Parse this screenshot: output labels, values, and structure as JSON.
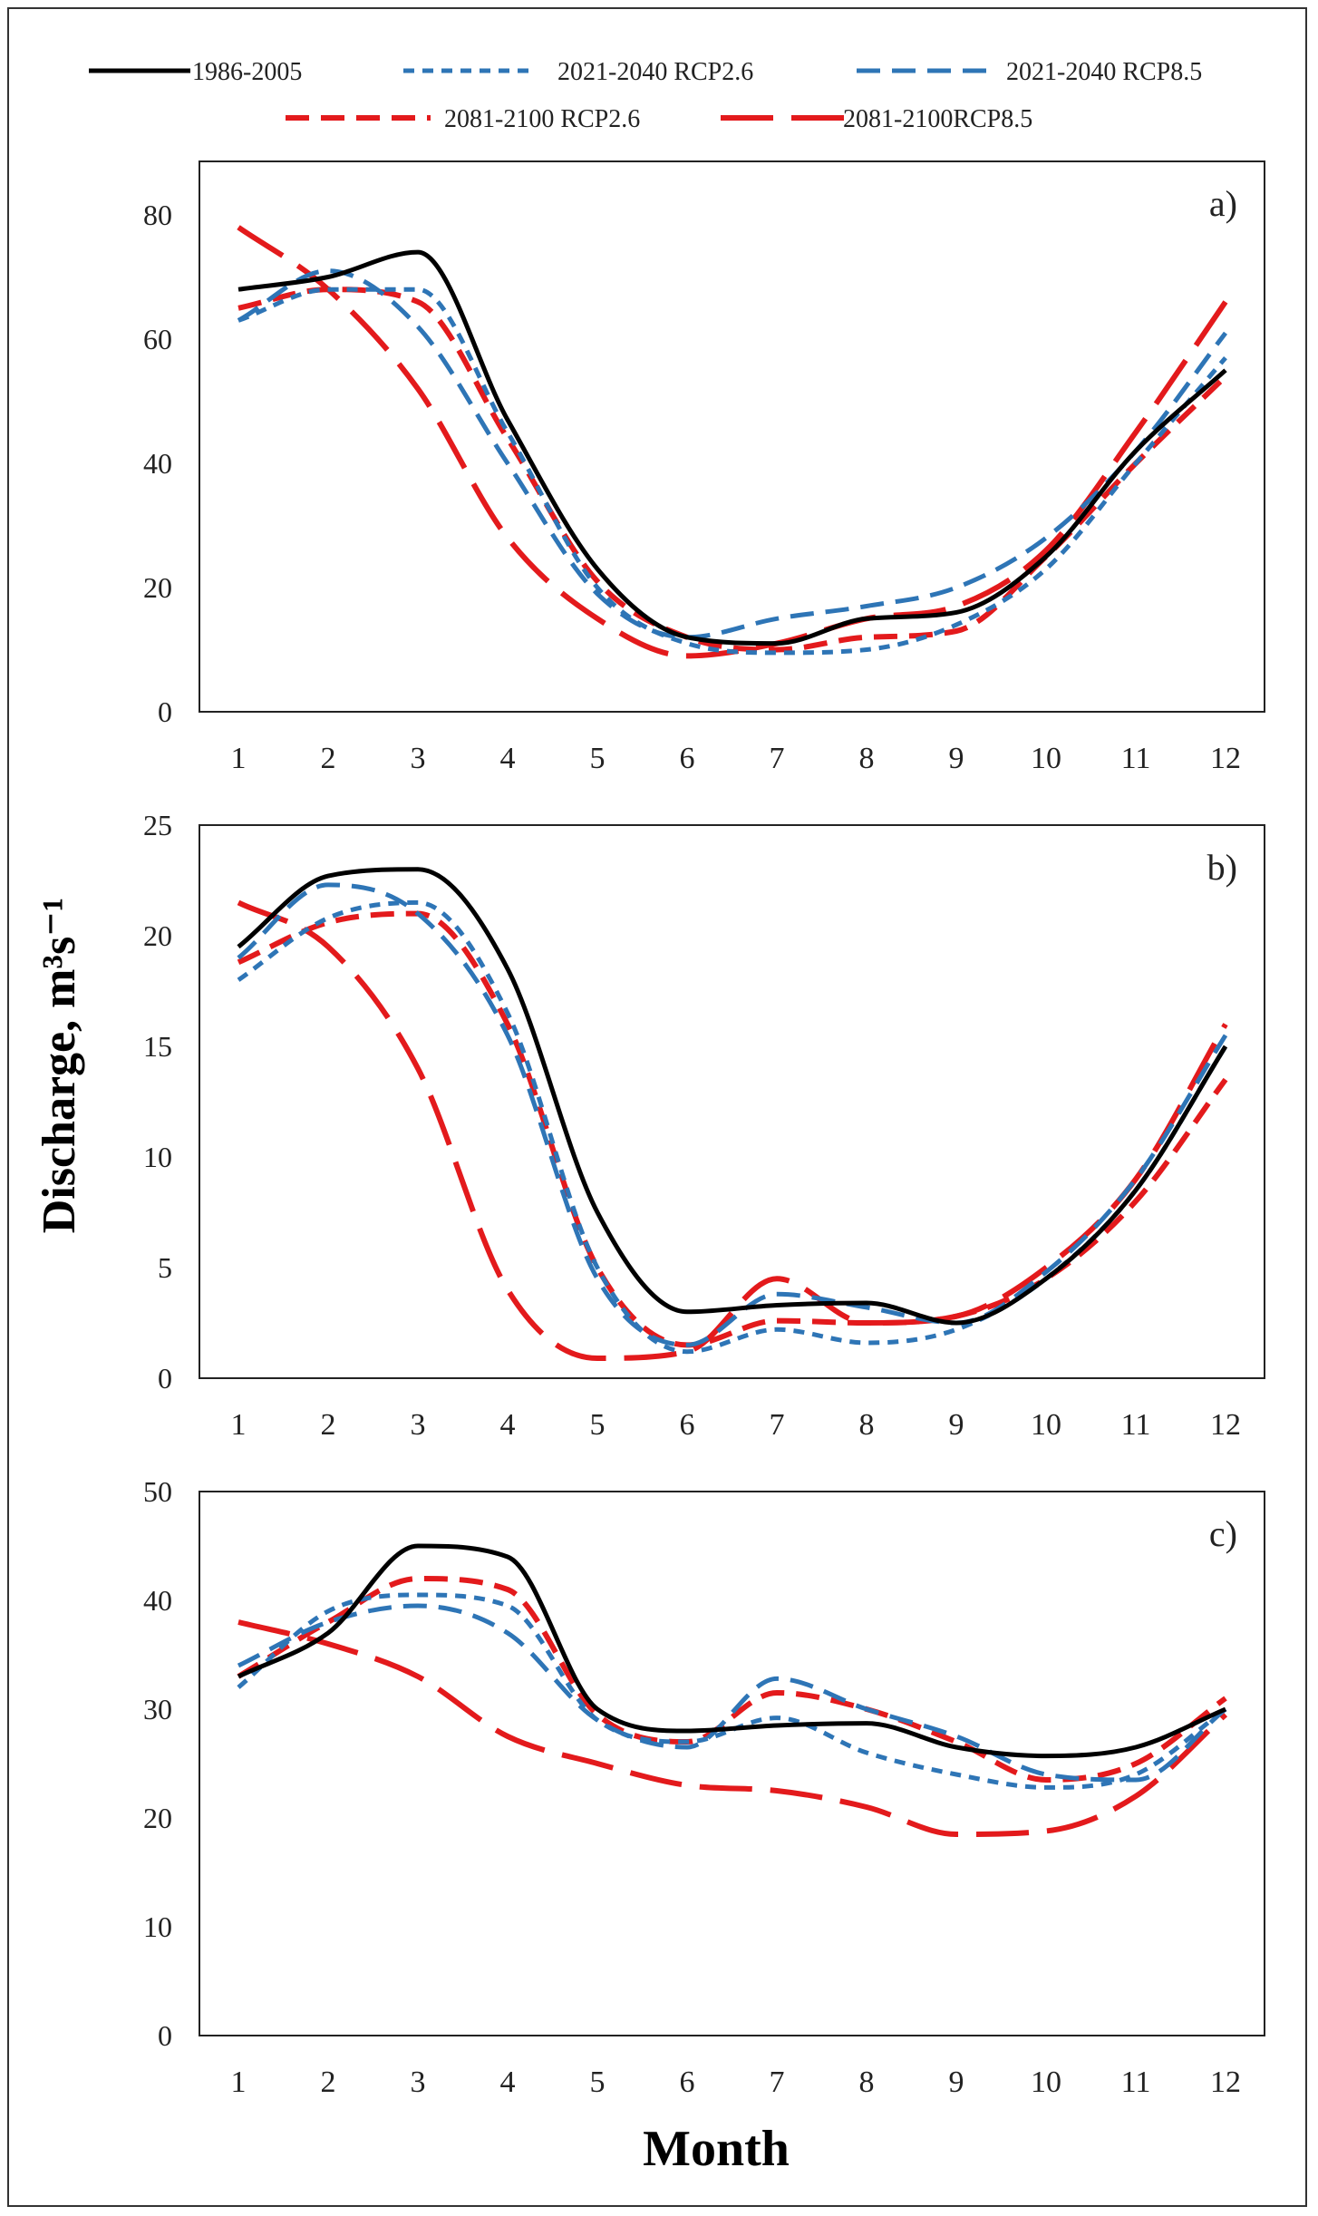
{
  "figure": {
    "ylabel": "Discharge, m³s⁻¹",
    "xlabel": "Month"
  },
  "legend": [
    {
      "name": "1986-2005",
      "color": "#000000",
      "dash": "solid",
      "width": 5
    },
    {
      "name": "2021-2040 RCP2.6",
      "color": "#2e75b6",
      "dash": "short",
      "width": 5
    },
    {
      "name": "2021-2040  RCP8.5",
      "color": "#2e75b6",
      "dash": "medium",
      "width": 5
    },
    {
      "name": "2081-2100 RCP2.6",
      "color": "#e31a1c",
      "dash": "medium",
      "width": 6
    },
    {
      "name": "2081-2100RCP8.5",
      "color": "#e31a1c",
      "dash": "long",
      "width": 6
    }
  ],
  "chart_data": [
    {
      "type": "line",
      "panel_label": "a)",
      "x": [
        1,
        2,
        3,
        4,
        5,
        6,
        7,
        8,
        9,
        10,
        11,
        12
      ],
      "ylim": [
        0,
        80
      ],
      "yticks": [
        0,
        20,
        40,
        60,
        80
      ],
      "series": [
        {
          "name": "1986-2005",
          "values": [
            68,
            70,
            74,
            47,
            23,
            12,
            11,
            15,
            16,
            25,
            42,
            55
          ]
        },
        {
          "name": "2021-2040 RCP2.6",
          "values": [
            63,
            68,
            68,
            45,
            20,
            11,
            9.5,
            10,
            14,
            23,
            40,
            57
          ]
        },
        {
          "name": "2021-2040  RCP8.5",
          "values": [
            63,
            71,
            62,
            40,
            19,
            12,
            15,
            17,
            20,
            28,
            42,
            61
          ]
        },
        {
          "name": "2081-2100 RCP2.6",
          "values": [
            65,
            68,
            66,
            44,
            21,
            12,
            10,
            12,
            13,
            25,
            40,
            54
          ]
        },
        {
          "name": "2081-2100RCP8.5",
          "values": [
            78,
            68,
            52,
            28,
            15,
            9,
            11,
            15,
            17,
            26,
            45,
            66
          ]
        }
      ]
    },
    {
      "type": "line",
      "panel_label": "b)",
      "x": [
        1,
        2,
        3,
        4,
        5,
        6,
        7,
        8,
        9,
        10,
        11,
        12
      ],
      "ylim": [
        0,
        25
      ],
      "yticks": [
        0,
        5,
        10,
        15,
        20,
        25
      ],
      "series": [
        {
          "name": "1986-2005",
          "values": [
            19.5,
            22.7,
            23,
            18.5,
            7.5,
            3,
            3.3,
            3.4,
            2.5,
            4.5,
            8.5,
            15
          ]
        },
        {
          "name": "2021-2040 RCP2.6",
          "values": [
            18,
            20.8,
            21.5,
            16.5,
            5,
            1.2,
            2.2,
            1.6,
            2.2,
            4.5,
            8.5,
            15
          ]
        },
        {
          "name": "2021-2040  RCP8.5",
          "values": [
            19,
            22.3,
            21,
            15.5,
            4.5,
            1.5,
            3.8,
            3.2,
            2.5,
            4.8,
            9,
            15.5
          ]
        },
        {
          "name": "2081-2100 RCP2.6",
          "values": [
            18.8,
            20.6,
            21,
            16,
            5,
            1.5,
            2.6,
            2.5,
            2.8,
            4.5,
            8,
            13.5
          ]
        },
        {
          "name": "2081-2100RCP8.5",
          "values": [
            21.5,
            19.5,
            14,
            4,
            0.9,
            1.2,
            4.5,
            2.5,
            2.8,
            5,
            9,
            16
          ]
        }
      ]
    },
    {
      "type": "line",
      "panel_label": "c)",
      "x": [
        1,
        2,
        3,
        4,
        5,
        6,
        7,
        8,
        9,
        10,
        11,
        12
      ],
      "ylim": [
        0,
        50
      ],
      "yticks": [
        0,
        10,
        20,
        30,
        40,
        50
      ],
      "series": [
        {
          "name": "1986-2005",
          "values": [
            33,
            37,
            45,
            44,
            30,
            28,
            28.5,
            28.7,
            26.5,
            25.7,
            26.5,
            30
          ]
        },
        {
          "name": "2021-2040 RCP2.6",
          "values": [
            32,
            39,
            40.5,
            39.5,
            29,
            27,
            29.2,
            26,
            24,
            22.8,
            24,
            30
          ]
        },
        {
          "name": "2021-2040  RCP8.5",
          "values": [
            34,
            38,
            39.5,
            37,
            29,
            26.5,
            32.8,
            30,
            27.5,
            24,
            23.5,
            30
          ]
        },
        {
          "name": "2081-2100 RCP2.6",
          "values": [
            33,
            38,
            42,
            41,
            29.5,
            27,
            31.5,
            30,
            27,
            23.5,
            25,
            31
          ]
        },
        {
          "name": "2081-2100RCP8.5",
          "values": [
            38,
            36,
            33,
            27.5,
            25,
            23,
            22.5,
            21,
            18.5,
            18.8,
            22,
            29.5
          ]
        }
      ]
    }
  ]
}
